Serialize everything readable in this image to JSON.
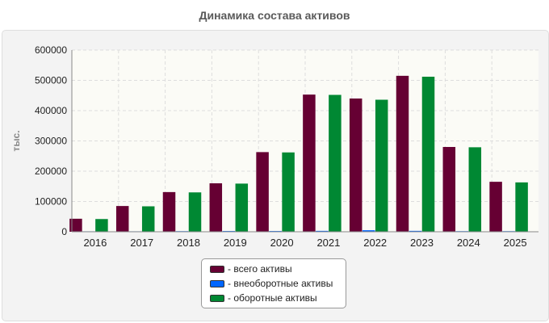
{
  "title": "Динамика состава активов",
  "chart_data": {
    "type": "bar",
    "title": "Динамика состава активов",
    "ylabel": "тыс.",
    "xlabel": "",
    "ylim": [
      0,
      600000
    ],
    "yticks": [
      0,
      100000,
      200000,
      300000,
      400000,
      500000,
      600000
    ],
    "ytick_labels": [
      "0",
      "100000",
      "200000",
      "300000",
      "400000",
      "500000",
      "600000"
    ],
    "grid": true,
    "legend_position": "bottom",
    "categories": [
      "2016",
      "2017",
      "2018",
      "2019",
      "2020",
      "2021",
      "2022",
      "2023",
      "2024",
      "2025"
    ],
    "series": [
      {
        "name": "- всего активы",
        "color": "#660033",
        "values": [
          43000,
          85000,
          131000,
          160000,
          263000,
          453000,
          440000,
          515000,
          280000,
          165000
        ]
      },
      {
        "name": "- внеоборотные активы",
        "color": "#0066ff",
        "values": [
          1500,
          1500,
          2000,
          2500,
          2500,
          3000,
          5000,
          3000,
          2000,
          2000
        ]
      },
      {
        "name": "- оборотные активы",
        "color": "#008833",
        "values": [
          42000,
          84000,
          130000,
          159000,
          262000,
          452000,
          436000,
          512000,
          279000,
          163000
        ]
      }
    ]
  }
}
